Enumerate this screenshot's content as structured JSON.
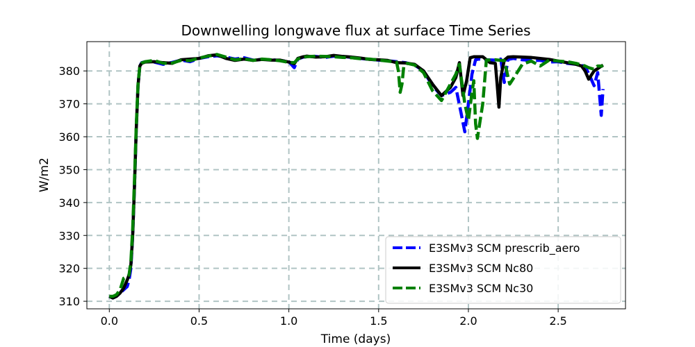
{
  "chart_data": {
    "type": "line",
    "title": "Downwelling longwave flux at surface Time Series",
    "xlabel": "Time (days)",
    "ylabel": "W/m2",
    "xlim": [
      -0.125,
      2.875
    ],
    "ylim": [
      307.7,
      388.9
    ],
    "xticks": [
      0.0,
      0.5,
      1.0,
      1.5,
      2.0,
      2.5
    ],
    "xtick_labels": [
      "0.0",
      "0.5",
      "1.0",
      "1.5",
      "2.0",
      "2.5"
    ],
    "yticks": [
      310,
      320,
      330,
      340,
      350,
      360,
      370,
      380
    ],
    "ytick_labels": [
      "310",
      "320",
      "330",
      "340",
      "350",
      "360",
      "370",
      "380"
    ],
    "grid": true,
    "legend_position": "lower-right",
    "series": [
      {
        "name": "E3SMv3 SCM prescrib_aero",
        "color": "#0000ff",
        "style": "dashed",
        "x": [
          0,
          0.02,
          0.04,
          0.06,
          0.08,
          0.1,
          0.11,
          0.12,
          0.13,
          0.14,
          0.15,
          0.16,
          0.17,
          0.18,
          0.2,
          0.25,
          0.3,
          0.35,
          0.4,
          0.45,
          0.5,
          0.55,
          0.6,
          0.65,
          0.7,
          0.75,
          0.8,
          0.85,
          0.9,
          0.95,
          1.0,
          1.03,
          1.05,
          1.08,
          1.1,
          1.15,
          1.2,
          1.25,
          1.3,
          1.35,
          1.4,
          1.45,
          1.5,
          1.55,
          1.6,
          1.65,
          1.7,
          1.75,
          1.8,
          1.85,
          1.9,
          1.93,
          1.96,
          1.98,
          2.0,
          2.02,
          2.04,
          2.06,
          2.1,
          2.15,
          2.18,
          2.2,
          2.22,
          2.25,
          2.3,
          2.35,
          2.4,
          2.45,
          2.5,
          2.55,
          2.6,
          2.65,
          2.68,
          2.7,
          2.72,
          2.74,
          2.75
        ],
        "y": [
          311.5,
          311,
          311.5,
          312.5,
          313.5,
          314.5,
          316.5,
          320,
          330,
          345,
          362,
          375.5,
          381.5,
          382.5,
          382.8,
          382.7,
          382.0,
          382.6,
          383.3,
          382.8,
          383.8,
          384.3,
          384.6,
          384.2,
          383.6,
          384.0,
          383.3,
          383.5,
          383.4,
          383.2,
          382.8,
          381.0,
          383.6,
          384.2,
          384.3,
          384.4,
          384.1,
          384.5,
          384.4,
          384.1,
          383.8,
          383.5,
          383.3,
          383.1,
          382.8,
          382.5,
          381.8,
          380.0,
          375.5,
          372.5,
          373.5,
          375.0,
          367.0,
          361.5,
          370.0,
          379.0,
          383.4,
          383.6,
          383.4,
          383.3,
          383.6,
          376.5,
          383.5,
          383.8,
          383.4,
          383.2,
          383.2,
          382.7,
          382.8,
          382.3,
          382.0,
          381.4,
          378.0,
          375.5,
          379.5,
          366.5,
          374.5
        ]
      },
      {
        "name": "E3SMv3 SCM Nc80",
        "color": "#000000",
        "style": "solid",
        "x": [
          0,
          0.02,
          0.04,
          0.06,
          0.08,
          0.1,
          0.11,
          0.12,
          0.13,
          0.14,
          0.15,
          0.16,
          0.17,
          0.18,
          0.2,
          0.25,
          0.3,
          0.35,
          0.4,
          0.45,
          0.5,
          0.55,
          0.6,
          0.65,
          0.7,
          0.75,
          0.8,
          0.85,
          0.9,
          0.95,
          1.0,
          1.03,
          1.05,
          1.08,
          1.1,
          1.15,
          1.2,
          1.25,
          1.3,
          1.35,
          1.4,
          1.45,
          1.5,
          1.55,
          1.6,
          1.65,
          1.7,
          1.75,
          1.8,
          1.85,
          1.9,
          1.93,
          1.95,
          1.97,
          1.99,
          2.01,
          2.03,
          2.05,
          2.08,
          2.12,
          2.15,
          2.16,
          2.17,
          2.18,
          2.2,
          2.22,
          2.25,
          2.3,
          2.35,
          2.4,
          2.45,
          2.5,
          2.55,
          2.6,
          2.63,
          2.65,
          2.67,
          2.7,
          2.75
        ],
        "y": [
          311.5,
          311,
          311.5,
          312.5,
          314,
          316.5,
          318,
          321,
          330,
          345,
          362,
          375.5,
          381.5,
          382.3,
          382.7,
          382.8,
          382.5,
          382.3,
          383.4,
          383.6,
          383.8,
          384.6,
          384.9,
          383.8,
          383.2,
          383.6,
          383.2,
          383.5,
          383.3,
          383.3,
          382.7,
          382.2,
          383.8,
          384.3,
          384.5,
          384.2,
          384.3,
          384.7,
          384.4,
          384.2,
          383.9,
          383.5,
          383.4,
          383.2,
          382.5,
          382.4,
          382.0,
          380.0,
          376.0,
          372.5,
          375.0,
          378.0,
          382.5,
          372.5,
          377.0,
          384.0,
          384.3,
          384.3,
          384.3,
          382.5,
          382.3,
          376.0,
          369.0,
          378.0,
          383.3,
          384.2,
          384.3,
          384.2,
          384.1,
          383.8,
          383.5,
          383.0,
          382.5,
          382.0,
          381.5,
          380.0,
          377.5,
          380.0,
          381.8
        ]
      },
      {
        "name": "E3SMv3 SCM Nc30",
        "color": "#008000",
        "style": "dashed",
        "x": [
          0,
          0.02,
          0.04,
          0.06,
          0.08,
          0.1,
          0.11,
          0.12,
          0.13,
          0.14,
          0.15,
          0.16,
          0.17,
          0.18,
          0.2,
          0.25,
          0.3,
          0.35,
          0.4,
          0.45,
          0.5,
          0.55,
          0.6,
          0.65,
          0.7,
          0.75,
          0.8,
          0.85,
          0.9,
          0.95,
          1.0,
          1.03,
          1.05,
          1.08,
          1.1,
          1.15,
          1.2,
          1.25,
          1.3,
          1.35,
          1.4,
          1.45,
          1.5,
          1.55,
          1.6,
          1.61,
          1.62,
          1.63,
          1.64,
          1.66,
          1.7,
          1.75,
          1.8,
          1.85,
          1.9,
          1.93,
          1.95,
          1.98,
          2.0,
          2.02,
          2.03,
          2.04,
          2.05,
          2.08,
          2.1,
          2.15,
          2.2,
          2.23,
          2.26,
          2.3,
          2.35,
          2.4,
          2.45,
          2.5,
          2.55,
          2.6,
          2.63,
          2.65,
          2.67,
          2.7,
          2.72,
          2.75
        ],
        "y": [
          311.5,
          311.5,
          312,
          313.5,
          317,
          317.5,
          318,
          322,
          332,
          347,
          363,
          376,
          381.5,
          382.4,
          382.8,
          383.2,
          382.3,
          382.4,
          383.2,
          383.1,
          383.9,
          384.5,
          385.0,
          384.2,
          383.4,
          383.7,
          383.2,
          383.6,
          383.4,
          383.1,
          382.6,
          382.5,
          383.6,
          384.2,
          384.3,
          384.5,
          384.4,
          384.3,
          384.1,
          384.0,
          383.7,
          383.6,
          383.3,
          383.0,
          382.7,
          380.0,
          373.5,
          376.0,
          381.5,
          382.3,
          381.8,
          379.5,
          374.0,
          371.0,
          376.0,
          379.0,
          382.0,
          370.0,
          365.0,
          373.5,
          377.0,
          364.0,
          359.5,
          370.0,
          383.3,
          383.4,
          383.1,
          376.0,
          378.5,
          382.0,
          383.0,
          381.5,
          383.3,
          383.0,
          382.8,
          382.3,
          381.8,
          381.5,
          381.0,
          380.5,
          381.5,
          381.5
        ]
      }
    ]
  }
}
